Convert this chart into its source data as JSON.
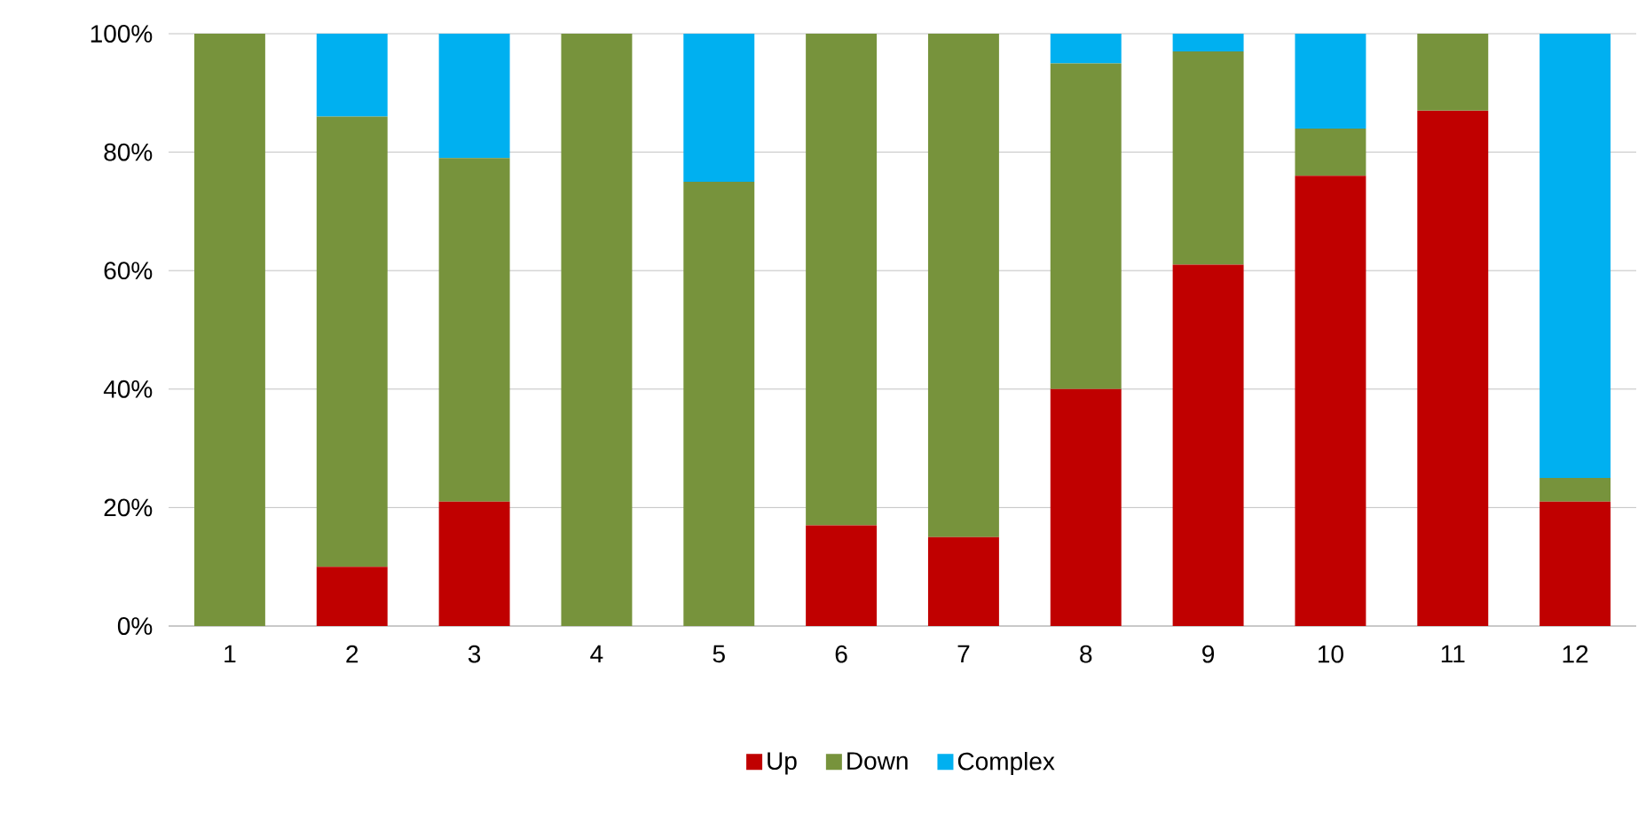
{
  "chart_data": {
    "type": "bar",
    "stacked": true,
    "categories": [
      "1",
      "2",
      "3",
      "4",
      "5",
      "6",
      "7",
      "8",
      "9",
      "10",
      "11",
      "12"
    ],
    "series": [
      {
        "name": "Up",
        "color": "#c00000",
        "values": [
          0,
          10,
          21,
          0,
          0,
          17,
          15,
          40,
          61,
          76,
          87,
          21
        ]
      },
      {
        "name": "Down",
        "color": "#77933c",
        "values": [
          100,
          76,
          58,
          100,
          75,
          83,
          85,
          55,
          36,
          8,
          13,
          4
        ]
      },
      {
        "name": "Complex",
        "color": "#00b0f0",
        "values": [
          0,
          14,
          21,
          0,
          25,
          0,
          0,
          5,
          3,
          16,
          0,
          75
        ]
      }
    ],
    "ylim": [
      0,
      100
    ],
    "yticks": [
      {
        "value": 0,
        "label": "0%"
      },
      {
        "value": 20,
        "label": "20%"
      },
      {
        "value": 40,
        "label": "40%"
      },
      {
        "value": 60,
        "label": "60%"
      },
      {
        "value": 80,
        "label": "80%"
      },
      {
        "value": 100,
        "label": "100%"
      }
    ],
    "grid": "y",
    "legend": "bottom"
  }
}
